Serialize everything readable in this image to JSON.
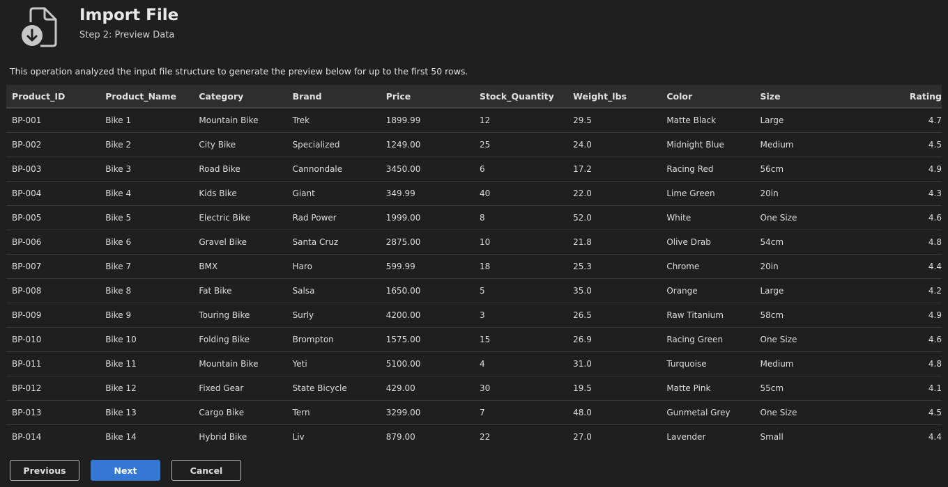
{
  "header": {
    "title": "Import File",
    "subtitle": "Step 2: Preview Data",
    "icon": "file-import-icon"
  },
  "description": "This operation analyzed the input file structure to generate the preview below for up to the first 50 rows.",
  "table": {
    "columns": [
      "Product_ID",
      "Product_Name",
      "Category",
      "Brand",
      "Price",
      "Stock_Quantity",
      "Weight_lbs",
      "Color",
      "Size",
      "Rating"
    ],
    "rows": [
      [
        "BP-001",
        "Bike 1",
        "Mountain Bike",
        "Trek",
        "1899.99",
        "12",
        "29.5",
        "Matte Black",
        "Large",
        "4.7"
      ],
      [
        "BP-002",
        "Bike 2",
        "City Bike",
        "Specialized",
        "1249.00",
        "25",
        "24.0",
        "Midnight Blue",
        "Medium",
        "4.5"
      ],
      [
        "BP-003",
        "Bike 3",
        "Road Bike",
        "Cannondale",
        "3450.00",
        "6",
        "17.2",
        "Racing Red",
        "56cm",
        "4.9"
      ],
      [
        "BP-004",
        "Bike 4",
        "Kids Bike",
        "Giant",
        "349.99",
        "40",
        "22.0",
        "Lime Green",
        "20in",
        "4.3"
      ],
      [
        "BP-005",
        "Bike 5",
        "Electric Bike",
        "Rad Power",
        "1999.00",
        "8",
        "52.0",
        "White",
        "One Size",
        "4.6"
      ],
      [
        "BP-006",
        "Bike 6",
        "Gravel Bike",
        "Santa Cruz",
        "2875.00",
        "10",
        "21.8",
        "Olive Drab",
        "54cm",
        "4.8"
      ],
      [
        "BP-007",
        "Bike 7",
        "BMX",
        "Haro",
        "599.99",
        "18",
        "25.3",
        "Chrome",
        "20in",
        "4.4"
      ],
      [
        "BP-008",
        "Bike 8",
        "Fat Bike",
        "Salsa",
        "1650.00",
        "5",
        "35.0",
        "Orange",
        "Large",
        "4.2"
      ],
      [
        "BP-009",
        "Bike 9",
        "Touring Bike",
        "Surly",
        "4200.00",
        "3",
        "26.5",
        "Raw Titanium",
        "58cm",
        "4.9"
      ],
      [
        "BP-010",
        "Bike 10",
        "Folding Bike",
        "Brompton",
        "1575.00",
        "15",
        "26.9",
        "Racing Green",
        "One Size",
        "4.6"
      ],
      [
        "BP-011",
        "Bike 11",
        "Mountain Bike",
        "Yeti",
        "5100.00",
        "4",
        "31.0",
        "Turquoise",
        "Medium",
        "4.8"
      ],
      [
        "BP-012",
        "Bike 12",
        "Fixed Gear",
        "State Bicycle",
        "429.00",
        "30",
        "19.5",
        "Matte Pink",
        "55cm",
        "4.1"
      ],
      [
        "BP-013",
        "Bike 13",
        "Cargo Bike",
        "Tern",
        "3299.00",
        "7",
        "48.0",
        "Gunmetal Grey",
        "One Size",
        "4.5"
      ],
      [
        "BP-014",
        "Bike 14",
        "Hybrid Bike",
        "Liv",
        "879.00",
        "22",
        "27.0",
        "Lavender",
        "Small",
        "4.4"
      ]
    ]
  },
  "buttons": {
    "previous": "Previous",
    "next": "Next",
    "cancel": "Cancel"
  },
  "colors": {
    "background": "#1f1f1f",
    "header_row": "#2e2e2e",
    "primary": "#3478d4"
  }
}
